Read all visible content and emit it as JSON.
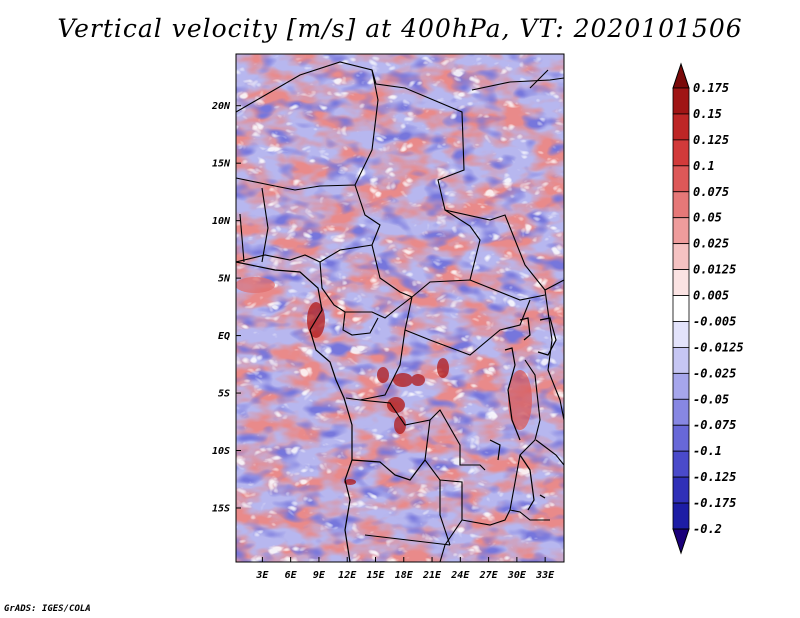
{
  "chart_data": {
    "type": "heatmap",
    "title": "Vertical velocity [m/s] at 400hPa, VT: 2020101506",
    "xlabel": "",
    "ylabel": "",
    "x_ticks": [
      "3E",
      "6E",
      "9E",
      "12E",
      "15E",
      "18E",
      "21E",
      "24E",
      "27E",
      "30E",
      "33E"
    ],
    "x_tick_values": [
      3,
      6,
      9,
      12,
      15,
      18,
      21,
      24,
      27,
      30,
      33
    ],
    "y_ticks": [
      "20N",
      "15N",
      "10N",
      "5N",
      "EQ",
      "5S",
      "10S",
      "15S"
    ],
    "y_tick_values": [
      20,
      15,
      10,
      5,
      0,
      -5,
      -10,
      -15
    ],
    "xlim": [
      0.2,
      35
    ],
    "ylim": [
      -19.7,
      24.5
    ],
    "colorbar": {
      "labels": [
        "0.175",
        "0.15",
        "0.125",
        "0.1",
        "0.075",
        "0.05",
        "0.025",
        "0.0125",
        "0.005",
        "-0.005",
        "-0.0125",
        "-0.025",
        "-0.05",
        "-0.075",
        "-0.1",
        "-0.125",
        "-0.175",
        "-0.2"
      ],
      "colors": [
        "#7a0a0a",
        "#a01515",
        "#be2626",
        "#d23a3a",
        "#dd5858",
        "#e67878",
        "#ee9c9c",
        "#f5c2c2",
        "#fbe3e3",
        "#ffffff",
        "#e3e3fb",
        "#c6c6f3",
        "#a6a6ec",
        "#8787e3",
        "#6868d8",
        "#4a4aca",
        "#3030b8",
        "#1d1da5",
        "#1a007a"
      ],
      "extend": "both"
    },
    "features": [
      "country-borders",
      "coastlines",
      "lakes"
    ]
  },
  "credit": "GrADS: IGES/COLA"
}
